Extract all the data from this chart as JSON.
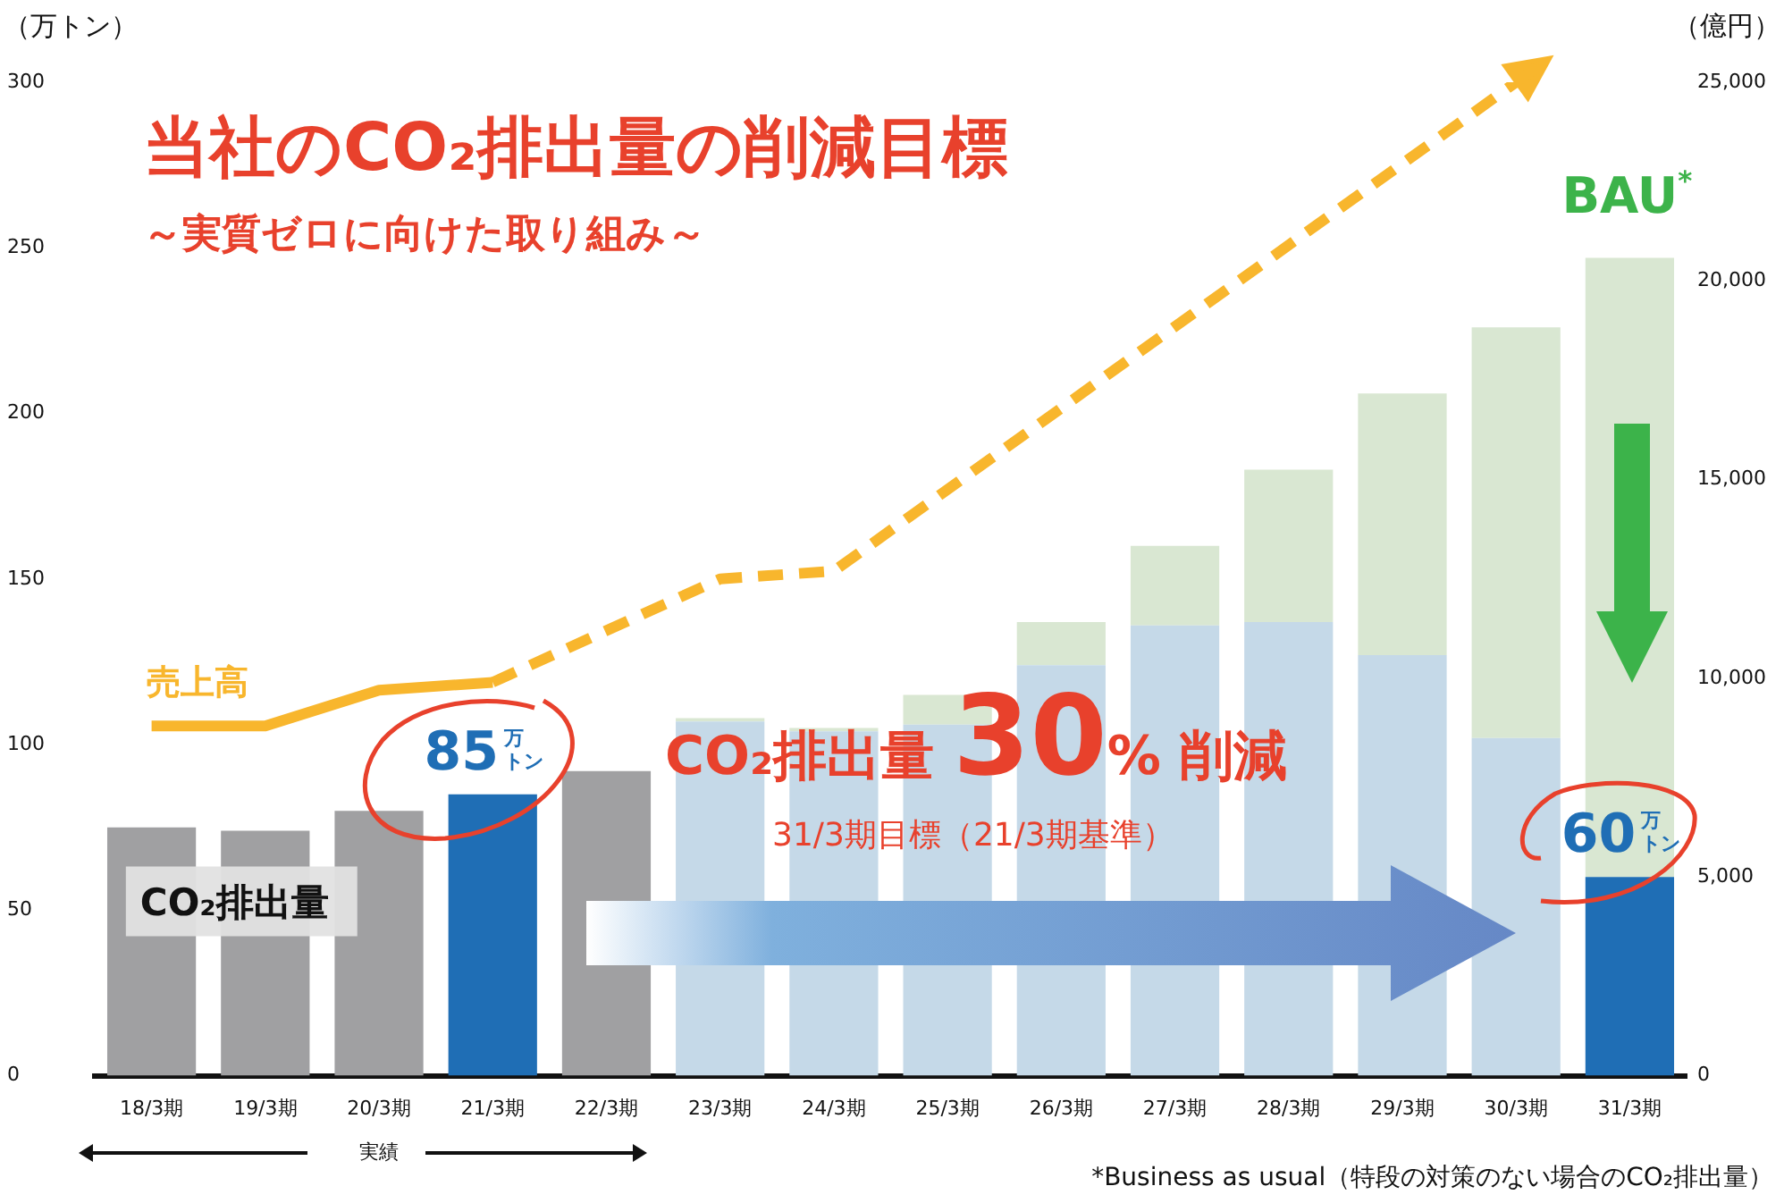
{
  "chart_data": {
    "type": "bar",
    "title": "当社のCO₂排出量の削減目標",
    "subtitle": "～実質ゼロに向けた取り組み～",
    "ylabel": "（万トン）",
    "y2label": "（億円）",
    "categories": [
      "18/3期",
      "19/3期",
      "20/3期",
      "21/3期",
      "22/3期",
      "23/3期",
      "24/3期",
      "25/3期",
      "26/3期",
      "27/3期",
      "28/3期",
      "29/3期",
      "30/3期",
      "31/3期"
    ],
    "stacked": true,
    "legend": false,
    "grid": false,
    "series": [
      {
        "name": "CO₂排出量",
        "colors": [
          "#a0a0a2",
          "#a0a0a2",
          "#a0a0a2",
          "#1f6eb5",
          "#a0a0a2",
          "#c5d9e8",
          "#c5d9e8",
          "#c5d9e8",
          "#c5d9e8",
          "#c5d9e8",
          "#c5d9e8",
          "#c5d9e8",
          "#c5d9e8",
          "#1f6eb5"
        ],
        "values": [
          75,
          74,
          80,
          85,
          92,
          107,
          104,
          106,
          124,
          136,
          137,
          127,
          102,
          60
        ],
        "value_labels": [
          null,
          null,
          null,
          "85万トン",
          null,
          null,
          null,
          null,
          null,
          null,
          null,
          null,
          null,
          "60万トン"
        ]
      },
      {
        "name": "BAU$^{*}$",
        "color": "#d9e7d2",
        "values": [
          null,
          null,
          null,
          null,
          null,
          1,
          1,
          9,
          13,
          24,
          46,
          79,
          124,
          187
        ]
      },
      {
        "name": "売上高",
        "type": "line",
        "axis": "y2",
        "color": "#f8b62d",
        "line_style": "solid",
        "values": [
          8800,
          8800,
          9700,
          9900,
          null,
          null,
          null,
          null,
          null,
          null,
          null,
          null,
          null,
          null
        ]
      },
      {
        "type": "line",
        "axis": "y2",
        "color": "#f8b62d",
        "line_style": "dashed",
        "values": [
          null,
          null,
          null,
          9900,
          null,
          12500,
          12700,
          null,
          null,
          null,
          null,
          null,
          25000,
          null
        ]
      }
    ],
    "ylim": [
      0,
      300
    ],
    "yticks": [
      0,
      50,
      100,
      150,
      200,
      250,
      300
    ],
    "y2lim": [
      0,
      25000
    ],
    "y2ticks": [
      {
        "value": 0,
        "label": "0"
      },
      {
        "value": 5000,
        "label": "5,000"
      },
      {
        "value": 10000,
        "label": "10,000"
      },
      {
        "value": 15000,
        "label": "15,000"
      },
      {
        "value": 20000,
        "label": "20,000"
      },
      {
        "value": 25000,
        "label": "25,000"
      }
    ],
    "annotations": [
      "CO₂排出量 30% 削減",
      "31/3期目標（21/3期基準）",
      "実績",
      "*Business as usual（特段の対策のない場合のCO₂排出量）"
    ]
  }
}
